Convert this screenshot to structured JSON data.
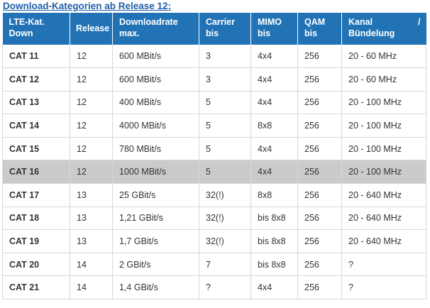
{
  "heading": "Download-Kategorien ab Release 12:",
  "headers": {
    "kat": [
      "LTE-Kat.",
      "Down"
    ],
    "release": [
      "Release"
    ],
    "rate": [
      "Downloadrate",
      "max."
    ],
    "carrier": [
      "Carrier",
      "bis"
    ],
    "mimo": [
      "MIMO",
      "bis"
    ],
    "qam": [
      "QAM",
      "bis"
    ],
    "kanal": [
      "Kanal",
      "Bündelung"
    ],
    "kanal_slash": "/"
  },
  "rows": [
    {
      "kat": "CAT 11",
      "release": "12",
      "rate": "600 MBit/s",
      "carrier": "3",
      "mimo": "4x4",
      "qam": "256",
      "kanal": "20 - 60 MHz"
    },
    {
      "kat": "CAT 12",
      "release": "12",
      "rate": "600 MBit/s",
      "carrier": "3",
      "mimo": "4x4",
      "qam": "256",
      "kanal": "20 - 60 MHz"
    },
    {
      "kat": "CAT 13",
      "release": "12",
      "rate": "400 MBit/s",
      "carrier": "5",
      "mimo": "4x4",
      "qam": "256",
      "kanal": "20 - 100 MHz"
    },
    {
      "kat": "CAT 14",
      "release": "12",
      "rate": "4000 MBit/s",
      "carrier": "5",
      "mimo": "8x8",
      "qam": "256",
      "kanal": "20 - 100 MHz"
    },
    {
      "kat": "CAT 15",
      "release": "12",
      "rate": "780 MBit/s",
      "carrier": "5",
      "mimo": "4x4",
      "qam": "256",
      "kanal": "20 - 100 MHz"
    },
    {
      "kat": "CAT 16",
      "release": "12",
      "rate": "1000 MBit/s",
      "carrier": "5",
      "mimo": "4x4",
      "qam": "256",
      "kanal": "20 - 100 MHz"
    },
    {
      "kat": "CAT 17",
      "release": "13",
      "rate": "25 GBit/s",
      "carrier": "32(!)",
      "mimo": "8x8",
      "qam": "256",
      "kanal": "20 - 640 MHz"
    },
    {
      "kat": "CAT 18",
      "release": "13",
      "rate": "1,21 GBit/s",
      "carrier": "32(!)",
      "mimo": "bis 8x8",
      "qam": "256",
      "kanal": "20 - 640 MHz"
    },
    {
      "kat": "CAT 19",
      "release": "13",
      "rate": "1,7 GBit/s",
      "carrier": "32(!)",
      "mimo": "bis 8x8",
      "qam": "256",
      "kanal": "20 - 640 MHz"
    },
    {
      "kat": "CAT 20",
      "release": "14",
      "rate": "2 GBit/s",
      "carrier": "7",
      "mimo": "bis 8x8",
      "qam": "256",
      "kanal": "?"
    },
    {
      "kat": "CAT 21",
      "release": "14",
      "rate": "1,4 GBit/s",
      "carrier": "?",
      "mimo": "4x4",
      "qam": "256",
      "kanal": "?"
    }
  ],
  "highlight_color": "#cbcbcb",
  "header_color": "#2273b6",
  "heading_color": "#1f5fa8"
}
